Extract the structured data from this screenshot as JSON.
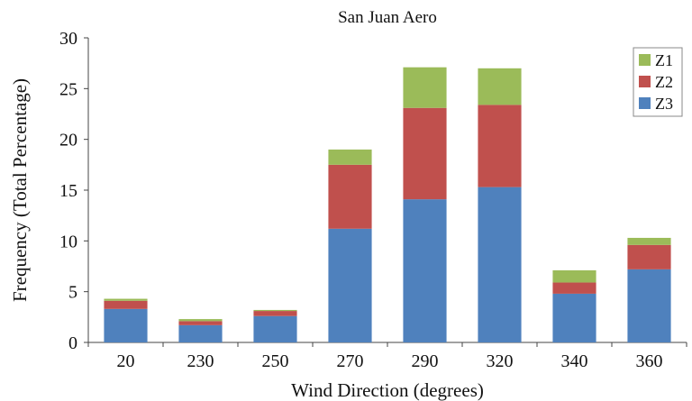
{
  "chart_data": {
    "type": "bar",
    "stacked": true,
    "title": "San Juan Aero",
    "xlabel": "Wind Direction (degrees)",
    "ylabel": "Frequency (Total Percentage)",
    "categories": [
      "20",
      "230",
      "250",
      "270",
      "290",
      "320",
      "340",
      "360"
    ],
    "ylim": [
      0,
      30
    ],
    "yticks": [
      0,
      5,
      10,
      15,
      20,
      25,
      30
    ],
    "grid": false,
    "legend_position": "top-right",
    "series": [
      {
        "name": "Z3",
        "color": "#4f81bd",
        "values": [
          3.3,
          1.7,
          2.6,
          11.2,
          14.1,
          15.3,
          4.8,
          7.2
        ]
      },
      {
        "name": "Z2",
        "color": "#c0504d",
        "values": [
          0.8,
          0.4,
          0.5,
          6.3,
          9.0,
          8.1,
          1.1,
          2.4
        ]
      },
      {
        "name": "Z1",
        "color": "#9bbb59",
        "values": [
          0.2,
          0.2,
          0.1,
          1.5,
          4.0,
          3.6,
          1.2,
          0.7
        ]
      }
    ]
  }
}
